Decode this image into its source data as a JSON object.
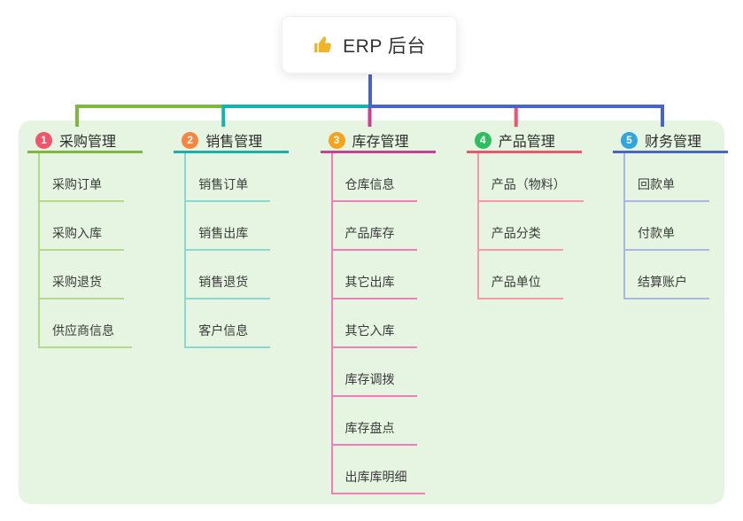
{
  "root": {
    "label": "ERP 后台",
    "icon": "thumbs-up",
    "icon_color": "#f0b429",
    "connector_color": "#4a63c8"
  },
  "panel": {
    "background": "#e6f5e1"
  },
  "branches": [
    {
      "index": "1",
      "label": "采购管理",
      "badge_color": "#f1556c",
      "line_color": "#82b73f",
      "sub_line_color": "#b5d98c",
      "children": [
        "采购订单",
        "采购入库",
        "采购退货",
        "供应商信息"
      ]
    },
    {
      "index": "2",
      "label": "销售管理",
      "badge_color": "#f8853d",
      "line_color": "#16b3ac",
      "sub_line_color": "#8ad8d1",
      "children": [
        "销售订单",
        "销售出库",
        "销售退货",
        "客户信息"
      ]
    },
    {
      "index": "3",
      "label": "库存管理",
      "badge_color": "#f5a31d",
      "line_color": "#cf3e96",
      "sub_line_color": "#ee7fb8",
      "children": [
        "仓库信息",
        "产品库存",
        "其它出库",
        "其它入库",
        "库存调拨",
        "库存盘点",
        "出库库明细"
      ]
    },
    {
      "index": "4",
      "label": "产品管理",
      "badge_color": "#2dbe60",
      "line_color": "#f4516c",
      "sub_line_color": "#f79aa6",
      "children": [
        "产品（物料）",
        "产品分类",
        "产品单位"
      ]
    },
    {
      "index": "5",
      "label": "财务管理",
      "badge_color": "#30a5de",
      "line_color": "#4a63c8",
      "sub_line_color": "#a8b8e0",
      "children": [
        "回款单",
        "付款单",
        "结算账户"
      ]
    }
  ]
}
